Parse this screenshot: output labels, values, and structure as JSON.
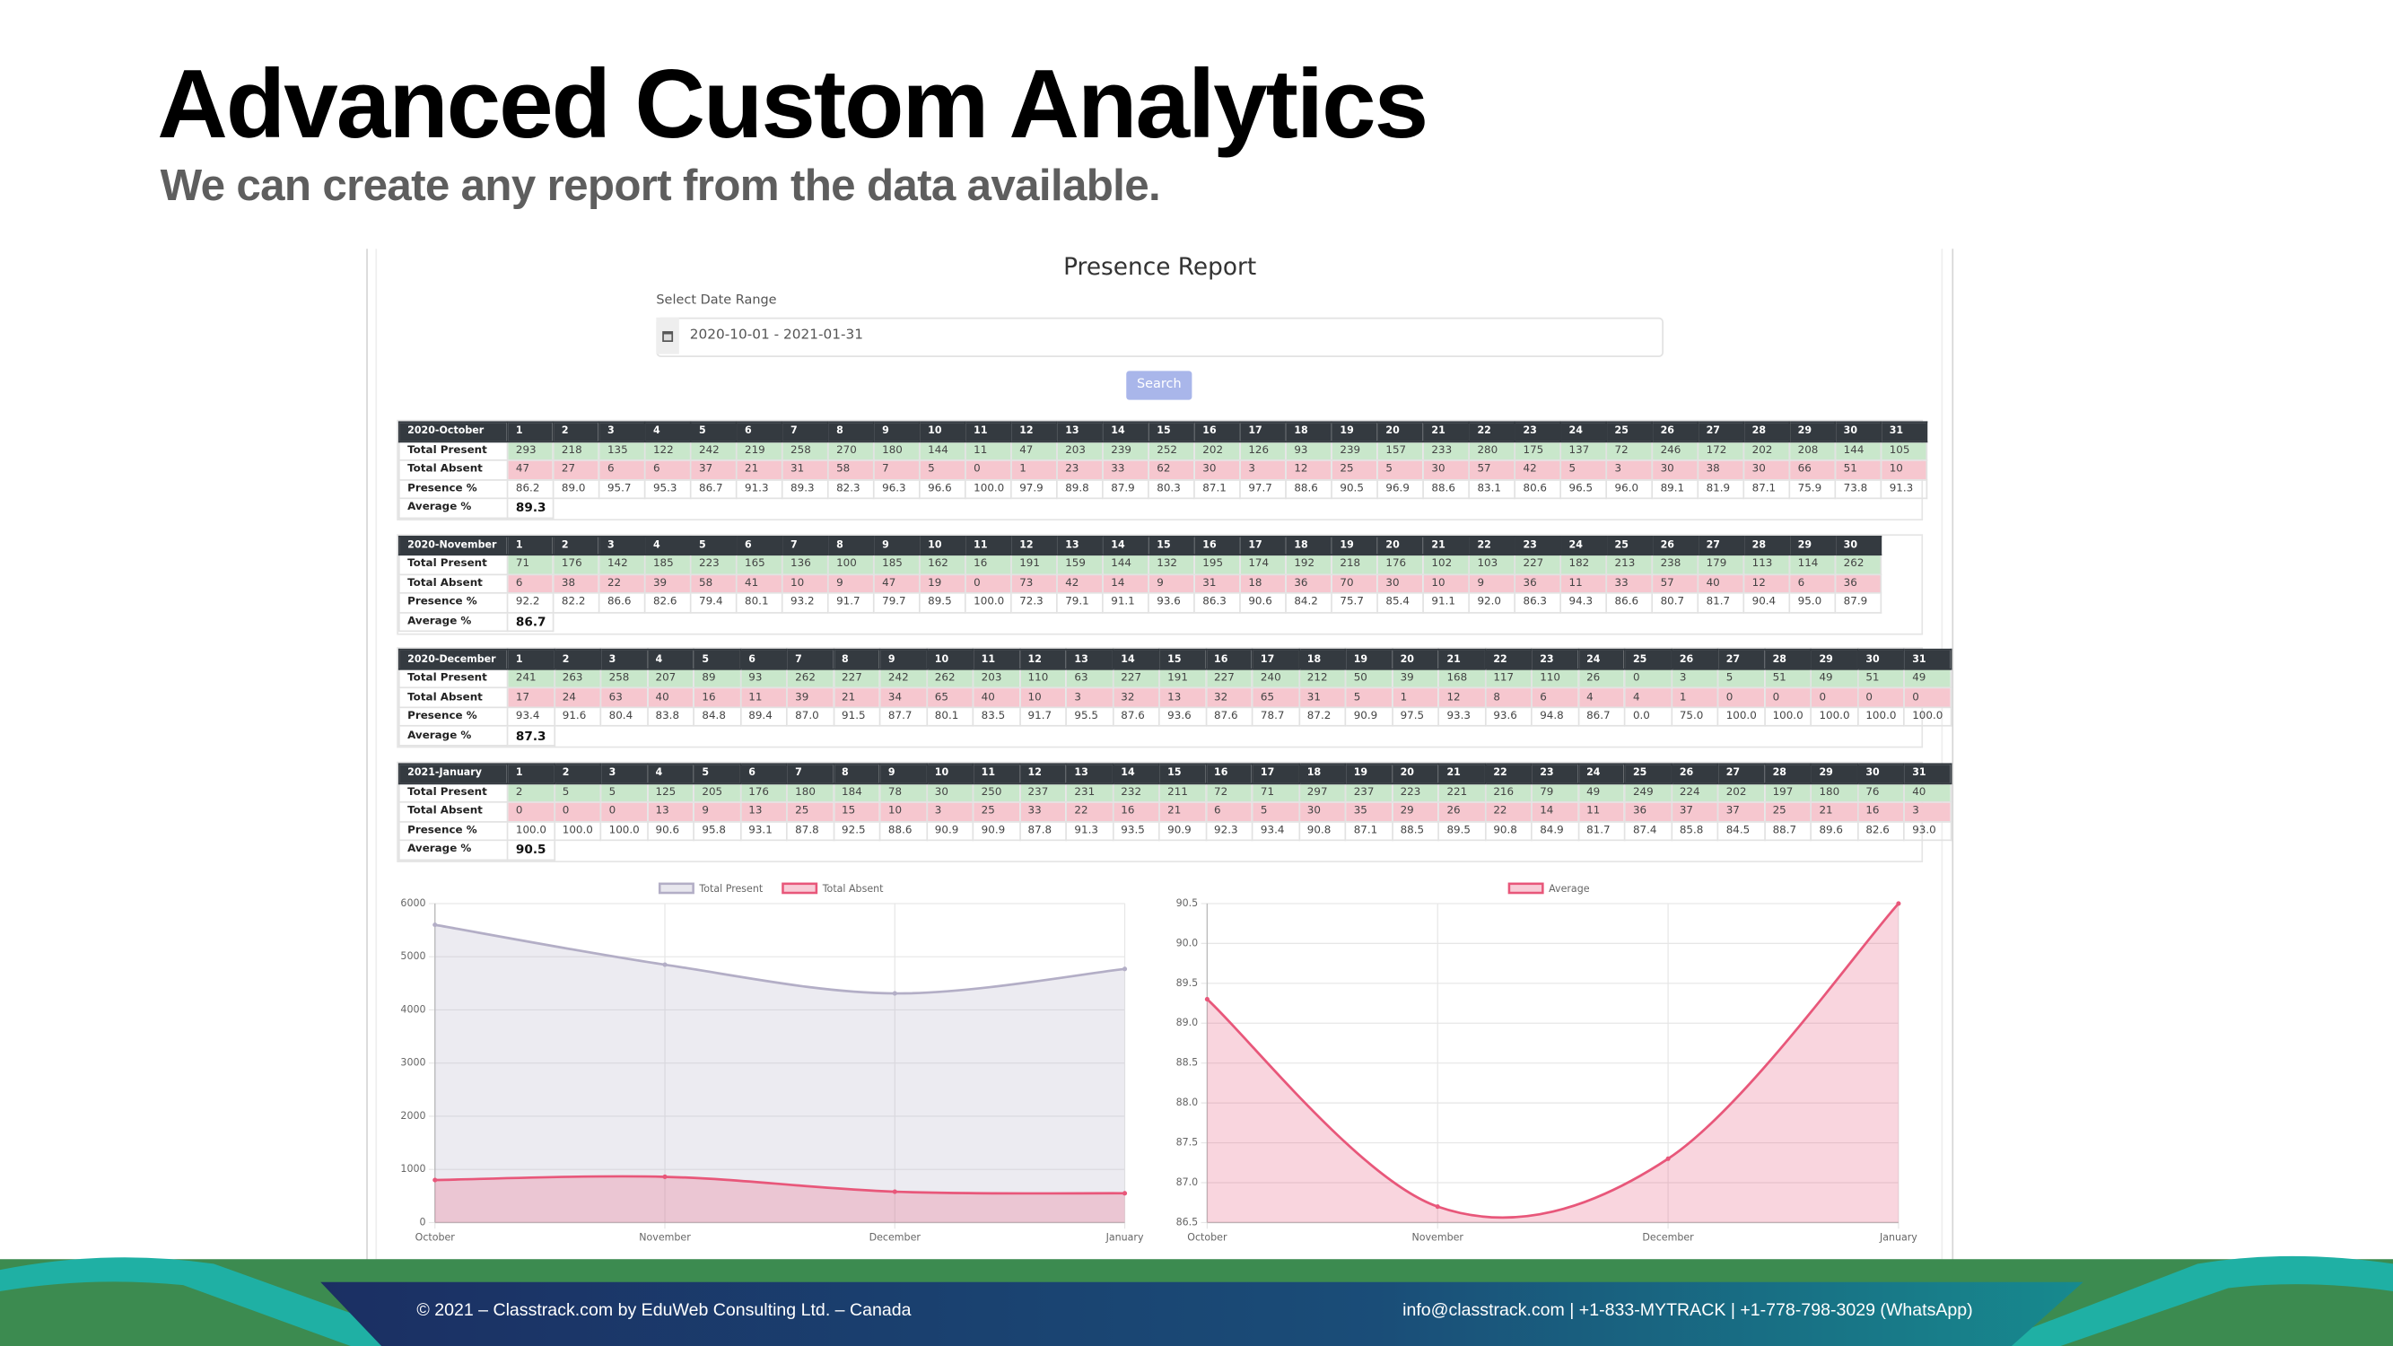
{
  "header": {
    "title": "Advanced Custom Analytics",
    "subtitle": "We can create any report from the data available."
  },
  "report": {
    "title": "Presence Report",
    "date_label": "Select Date Range",
    "date_value": "2020-10-01 - 2021-01-31",
    "button": "Search"
  },
  "tables": [
    {
      "month": "2020-October",
      "days": [
        1,
        2,
        3,
        4,
        5,
        6,
        7,
        8,
        9,
        10,
        11,
        12,
        13,
        14,
        15,
        16,
        17,
        18,
        19,
        20,
        21,
        22,
        23,
        24,
        25,
        26,
        27,
        28,
        29,
        30,
        31
      ],
      "rows": [
        {
          "label": "Total Present",
          "values": [
            293,
            218,
            135,
            122,
            242,
            219,
            258,
            270,
            180,
            144,
            11,
            47,
            203,
            239,
            252,
            202,
            126,
            93,
            239,
            157,
            233,
            280,
            175,
            137,
            72,
            246,
            172,
            202,
            208,
            144,
            105
          ]
        },
        {
          "label": "Total Absent",
          "values": [
            47,
            27,
            6,
            6,
            37,
            21,
            31,
            58,
            7,
            5,
            0,
            1,
            23,
            33,
            62,
            30,
            3,
            12,
            25,
            5,
            30,
            57,
            42,
            5,
            3,
            30,
            38,
            30,
            66,
            51,
            10
          ]
        },
        {
          "label": "Presence %",
          "values": [
            "86.2",
            "89.0",
            "95.7",
            "95.3",
            "86.7",
            "91.3",
            "89.3",
            "82.3",
            "96.3",
            "96.6",
            "100.0",
            "97.9",
            "89.8",
            "87.9",
            "80.3",
            "87.1",
            "97.7",
            "88.6",
            "90.5",
            "96.9",
            "88.6",
            "83.1",
            "80.6",
            "96.5",
            "96.0",
            "89.1",
            "81.9",
            "87.1",
            "75.9",
            "73.8",
            "91.3"
          ]
        }
      ],
      "average": {
        "label": "Average %",
        "value": "89.3"
      }
    },
    {
      "month": "2020-November",
      "days": [
        1,
        2,
        3,
        4,
        5,
        6,
        7,
        8,
        9,
        10,
        11,
        12,
        13,
        14,
        15,
        16,
        17,
        18,
        19,
        20,
        21,
        22,
        23,
        24,
        25,
        26,
        27,
        28,
        29,
        30
      ],
      "rows": [
        {
          "label": "Total Present",
          "values": [
            71,
            176,
            142,
            185,
            223,
            165,
            136,
            100,
            185,
            162,
            16,
            191,
            159,
            144,
            132,
            195,
            174,
            192,
            218,
            176,
            102,
            103,
            227,
            182,
            213,
            238,
            179,
            113,
            114,
            262
          ]
        },
        {
          "label": "Total Absent",
          "values": [
            6,
            38,
            22,
            39,
            58,
            41,
            10,
            9,
            47,
            19,
            0,
            73,
            42,
            14,
            9,
            31,
            18,
            36,
            70,
            30,
            10,
            9,
            36,
            11,
            33,
            57,
            40,
            12,
            6,
            36
          ]
        },
        {
          "label": "Presence %",
          "values": [
            "92.2",
            "82.2",
            "86.6",
            "82.6",
            "79.4",
            "80.1",
            "93.2",
            "91.7",
            "79.7",
            "89.5",
            "100.0",
            "72.3",
            "79.1",
            "91.1",
            "93.6",
            "86.3",
            "90.6",
            "84.2",
            "75.7",
            "85.4",
            "91.1",
            "92.0",
            "86.3",
            "94.3",
            "86.6",
            "80.7",
            "81.7",
            "90.4",
            "95.0",
            "87.9"
          ]
        }
      ],
      "average": {
        "label": "Average %",
        "value": "86.7"
      }
    },
    {
      "month": "2020-December",
      "days": [
        1,
        2,
        3,
        4,
        5,
        6,
        7,
        8,
        9,
        10,
        11,
        12,
        13,
        14,
        15,
        16,
        17,
        18,
        19,
        20,
        21,
        22,
        23,
        24,
        25,
        26,
        27,
        28,
        29,
        30,
        31
      ],
      "rows": [
        {
          "label": "Total Present",
          "values": [
            241,
            263,
            258,
            207,
            89,
            93,
            262,
            227,
            242,
            262,
            203,
            110,
            63,
            227,
            191,
            227,
            240,
            212,
            50,
            39,
            168,
            117,
            110,
            26,
            0,
            3,
            5,
            51,
            49,
            51,
            49
          ]
        },
        {
          "label": "Total Absent",
          "values": [
            17,
            24,
            63,
            40,
            16,
            11,
            39,
            21,
            34,
            65,
            40,
            10,
            3,
            32,
            13,
            32,
            65,
            31,
            5,
            1,
            12,
            8,
            6,
            4,
            4,
            1,
            0,
            0,
            0,
            0,
            0
          ]
        },
        {
          "label": "Presence %",
          "values": [
            "93.4",
            "91.6",
            "80.4",
            "83.8",
            "84.8",
            "89.4",
            "87.0",
            "91.5",
            "87.7",
            "80.1",
            "83.5",
            "91.7",
            "95.5",
            "87.6",
            "93.6",
            "87.6",
            "78.7",
            "87.2",
            "90.9",
            "97.5",
            "93.3",
            "93.6",
            "94.8",
            "86.7",
            "0.0",
            "75.0",
            "100.0",
            "100.0",
            "100.0",
            "100.0",
            "100.0"
          ]
        }
      ],
      "average": {
        "label": "Average %",
        "value": "87.3"
      }
    },
    {
      "month": "2021-January",
      "days": [
        1,
        2,
        3,
        4,
        5,
        6,
        7,
        8,
        9,
        10,
        11,
        12,
        13,
        14,
        15,
        16,
        17,
        18,
        19,
        20,
        21,
        22,
        23,
        24,
        25,
        26,
        27,
        28,
        29,
        30,
        31
      ],
      "rows": [
        {
          "label": "Total Present",
          "values": [
            2,
            5,
            5,
            125,
            205,
            176,
            180,
            184,
            78,
            30,
            250,
            237,
            231,
            232,
            211,
            72,
            71,
            297,
            237,
            223,
            221,
            216,
            79,
            49,
            249,
            224,
            202,
            197,
            180,
            76,
            40
          ]
        },
        {
          "label": "Total Absent",
          "values": [
            0,
            0,
            0,
            13,
            9,
            13,
            25,
            15,
            10,
            3,
            25,
            33,
            22,
            16,
            21,
            6,
            5,
            30,
            35,
            29,
            26,
            22,
            14,
            11,
            36,
            37,
            37,
            25,
            21,
            16,
            3
          ]
        },
        {
          "label": "Presence %",
          "values": [
            "100.0",
            "100.0",
            "100.0",
            "90.6",
            "95.8",
            "93.1",
            "87.8",
            "92.5",
            "88.6",
            "90.9",
            "90.9",
            "87.8",
            "91.3",
            "93.5",
            "90.9",
            "92.3",
            "93.4",
            "90.8",
            "87.1",
            "88.5",
            "89.5",
            "90.8",
            "84.9",
            "81.7",
            "87.4",
            "85.8",
            "84.5",
            "88.7",
            "89.6",
            "82.6",
            "93.0"
          ]
        }
      ],
      "average": {
        "label": "Average %",
        "value": "90.5"
      }
    }
  ],
  "chart_data": [
    {
      "type": "line",
      "categories": [
        "October",
        "November",
        "December",
        "January"
      ],
      "series": [
        {
          "name": "Total Present",
          "color": "#b3aec6",
          "values": [
            5600,
            4850,
            4310,
            4770
          ]
        },
        {
          "name": "Total Absent",
          "color": "#e8577a",
          "values": [
            800,
            860,
            580,
            550
          ]
        }
      ],
      "ylim": [
        0,
        6000
      ],
      "yticks": [
        0,
        1000,
        2000,
        3000,
        4000,
        5000,
        6000
      ],
      "grid": true,
      "legend": "top"
    },
    {
      "type": "line",
      "categories": [
        "October",
        "November",
        "December",
        "January"
      ],
      "series": [
        {
          "name": "Average",
          "color": "#e8577a",
          "values": [
            89.3,
            86.7,
            87.3,
            90.5
          ]
        }
      ],
      "ylim": [
        86.5,
        90.5
      ],
      "yticks": [
        86.5,
        {
          "value": 87,
          "label": "87.0"
        },
        87.5,
        {
          "value": 88,
          "label": "88.0"
        },
        88.5,
        {
          "value": 89,
          "label": "89.0"
        },
        89.5,
        {
          "value": 90,
          "label": "90.0"
        },
        90.5
      ],
      "grid": true,
      "legend": "top"
    }
  ],
  "footer": {
    "left": "© 2021 – Classtrack.com by EduWeb Consulting Ltd. – Canada",
    "right": "info@classtrack.com | +1-833-MYTRACK | +1-778-798-3029 (WhatsApp)"
  }
}
